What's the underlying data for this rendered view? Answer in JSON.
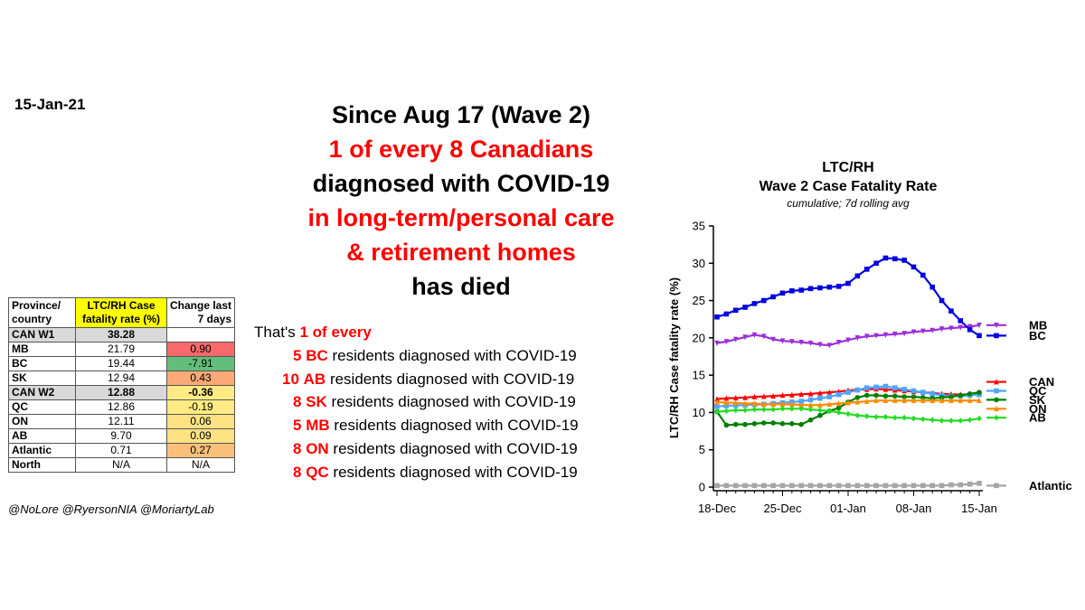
{
  "date": "15-Jan-21",
  "headline": [
    {
      "text": "Since Aug 17 (Wave 2)",
      "red": false
    },
    {
      "text": "1 of every  8  Canadians",
      "red": true
    },
    {
      "text": "diagnosed with COVID-19",
      "red": false
    },
    {
      "text": "in long-term/personal care",
      "red": true
    },
    {
      "text": "& retirement homes",
      "red": true
    },
    {
      "text": "has died",
      "red": false
    }
  ],
  "table": {
    "headers": [
      "Province/ country",
      "LTC/RH Case fatality rate (%)",
      "Change last 7 days"
    ],
    "rows": [
      {
        "name": "CAN W1",
        "rate": "38.28",
        "change": "",
        "color": "#ffffff",
        "gray": true
      },
      {
        "name": "MB",
        "rate": "21.79",
        "change": "0.90",
        "color": "#f8696b",
        "gray": false
      },
      {
        "name": "BC",
        "rate": "19.44",
        "change": "-7.91",
        "color": "#63be7b",
        "gray": false
      },
      {
        "name": "SK",
        "rate": "12.94",
        "change": "0.43",
        "color": "#fbaa77",
        "gray": false
      },
      {
        "name": "CAN W2",
        "rate": "12.88",
        "change": "-0.36",
        "color": "#ffeb84",
        "gray": true
      },
      {
        "name": "QC",
        "rate": "12.86",
        "change": "-0.19",
        "color": "#ffeb84",
        "gray": false
      },
      {
        "name": "ON",
        "rate": "12.11",
        "change": "0.06",
        "color": "#fee283",
        "gray": false
      },
      {
        "name": "AB",
        "rate": "9.70",
        "change": "0.09",
        "color": "#fee283",
        "gray": false
      },
      {
        "name": "Atlantic",
        "rate": "0.71",
        "change": "0.27",
        "color": "#fcc07b",
        "gray": false
      },
      {
        "name": "North",
        "rate": "N/A",
        "change": "N/A",
        "color": "#ffffff",
        "gray": false
      }
    ]
  },
  "handles": "@NoLore @RyersonNIA @MoriartyLab",
  "stats": {
    "intro_prefix": "That's ",
    "intro_highlight": "1 of every",
    "suffix": " residents diagnosed with COVID-19",
    "lines": [
      {
        "num": "5",
        "prov": "BC"
      },
      {
        "num": "10",
        "prov": "AB"
      },
      {
        "num": "8",
        "prov": "SK"
      },
      {
        "num": "5",
        "prov": "MB"
      },
      {
        "num": "8",
        "prov": "ON"
      },
      {
        "num": "8",
        "prov": "QC"
      }
    ]
  },
  "chart_data": {
    "type": "line",
    "title": "LTC/RH",
    "title_line2": "Wave 2 Case Fatality Rate",
    "subtitle": "cumulative; 7d rolling avg",
    "ylabel": "LTC/RH Case fatality rate (%)",
    "xlabel": "",
    "ylim": [
      0,
      35
    ],
    "yticks": [
      "0",
      "5",
      "10",
      "15",
      "20",
      "25",
      "30",
      "35"
    ],
    "x": [
      "18-Dec",
      "19-Dec",
      "20-Dec",
      "21-Dec",
      "22-Dec",
      "23-Dec",
      "24-Dec",
      "25-Dec",
      "26-Dec",
      "27-Dec",
      "28-Dec",
      "29-Dec",
      "30-Dec",
      "31-Dec",
      "01-Jan",
      "02-Jan",
      "03-Jan",
      "04-Jan",
      "05-Jan",
      "06-Jan",
      "07-Jan",
      "08-Jan",
      "09-Jan",
      "10-Jan",
      "11-Jan",
      "12-Jan",
      "13-Jan",
      "14-Jan",
      "15-Jan"
    ],
    "xticks": [
      "18-Dec",
      "25-Dec",
      "01-Jan",
      "08-Jan",
      "15-Jan"
    ],
    "grid": false,
    "series": [
      {
        "name": "MB",
        "color": "#9b30d9",
        "marker": "triangle-down",
        "values": [
          19.3,
          19.5,
          19.8,
          20.1,
          20.4,
          20.2,
          19.8,
          19.6,
          19.5,
          19.4,
          19.3,
          19.1,
          19.0,
          19.4,
          19.7,
          20.0,
          20.2,
          20.3,
          20.4,
          20.5,
          20.6,
          20.8,
          20.9,
          21.0,
          21.2,
          21.3,
          21.4,
          21.5,
          21.7
        ]
      },
      {
        "name": "BC",
        "color": "#0000e0",
        "marker": "square",
        "values": [
          22.8,
          23.2,
          23.7,
          24.1,
          24.6,
          25.0,
          25.5,
          26.0,
          26.3,
          26.4,
          26.6,
          26.7,
          26.8,
          26.9,
          27.3,
          28.3,
          29.2,
          30.0,
          30.7,
          30.6,
          30.4,
          29.5,
          28.4,
          26.8,
          25.0,
          23.6,
          22.3,
          21.1,
          20.3
        ]
      },
      {
        "name": "CAN",
        "color": "#ff0000",
        "marker": "triangle-up",
        "values": [
          11.8,
          11.9,
          11.95,
          12.0,
          12.1,
          12.15,
          12.2,
          12.3,
          12.35,
          12.45,
          12.5,
          12.6,
          12.7,
          12.8,
          12.95,
          13.05,
          13.1,
          13.15,
          13.1,
          13.0,
          12.9,
          12.8,
          12.7,
          12.6,
          12.5,
          12.45,
          12.4,
          12.42,
          12.45
        ]
      },
      {
        "name": "QC",
        "color": "#4da6ff",
        "marker": "square",
        "values": [
          10.8,
          10.9,
          10.95,
          11.0,
          11.05,
          11.1,
          11.2,
          11.3,
          11.4,
          11.5,
          11.7,
          11.9,
          12.1,
          12.4,
          12.7,
          13.0,
          13.3,
          13.4,
          13.5,
          13.3,
          13.1,
          12.9,
          12.7,
          12.5,
          12.3,
          12.2,
          12.2,
          12.3,
          12.4
        ]
      },
      {
        "name": "SK",
        "color": "#008000",
        "marker": "circle",
        "values": [
          10.1,
          8.3,
          8.4,
          8.4,
          8.5,
          8.6,
          8.6,
          8.5,
          8.5,
          8.4,
          9.0,
          9.6,
          10.2,
          10.6,
          11.4,
          12.0,
          12.3,
          12.3,
          12.2,
          12.2,
          12.1,
          12.1,
          12.0,
          11.9,
          12.0,
          12.1,
          12.3,
          12.5,
          12.7
        ]
      },
      {
        "name": "ON",
        "color": "#ff8c00",
        "marker": "triangle-up",
        "values": [
          11.4,
          11.3,
          11.3,
          11.2,
          11.2,
          11.1,
          11.1,
          11.1,
          11.1,
          11.0,
          11.0,
          11.0,
          11.1,
          11.2,
          11.3,
          11.4,
          11.5,
          11.6,
          11.6,
          11.6,
          11.6,
          11.6,
          11.6,
          11.6,
          11.6,
          11.6,
          11.6,
          11.6,
          11.6
        ]
      },
      {
        "name": "AB",
        "color": "#22dd22",
        "marker": "diamond",
        "values": [
          10.1,
          10.2,
          10.3,
          10.3,
          10.4,
          10.4,
          10.4,
          10.5,
          10.5,
          10.5,
          10.4,
          10.3,
          10.2,
          10.0,
          9.8,
          9.6,
          9.5,
          9.4,
          9.4,
          9.3,
          9.3,
          9.2,
          9.1,
          9.0,
          8.9,
          8.9,
          8.9,
          9.0,
          9.2
        ]
      },
      {
        "name": "Atlantic",
        "color": "#a6a6a6",
        "marker": "square",
        "values": [
          0.2,
          0.2,
          0.2,
          0.2,
          0.2,
          0.2,
          0.2,
          0.2,
          0.2,
          0.2,
          0.2,
          0.2,
          0.2,
          0.2,
          0.2,
          0.2,
          0.2,
          0.2,
          0.2,
          0.2,
          0.2,
          0.2,
          0.2,
          0.2,
          0.2,
          0.3,
          0.3,
          0.4,
          0.5
        ]
      }
    ],
    "legend": {
      "placement": "right",
      "entries": [
        {
          "name": "MB",
          "value": 21.7
        },
        {
          "name": "BC",
          "value": 20.3
        },
        {
          "name": "CAN",
          "value": 14.1
        },
        {
          "name": "QC",
          "value": 12.9
        },
        {
          "name": "SK",
          "value": 11.7
        },
        {
          "name": "ON",
          "value": 10.5
        },
        {
          "name": "AB",
          "value": 9.3
        },
        {
          "name": "Atlantic",
          "value": 0.2
        }
      ]
    }
  }
}
